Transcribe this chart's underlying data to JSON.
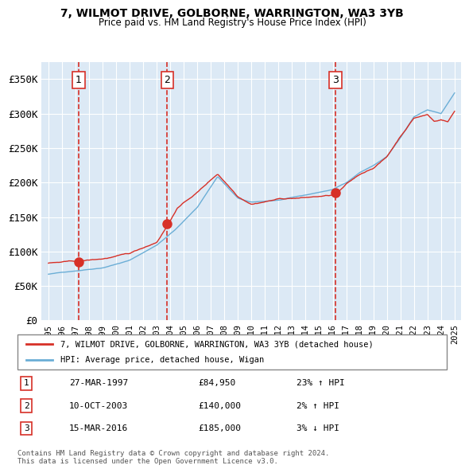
{
  "title": "7, WILMOT DRIVE, GOLBORNE, WARRINGTON, WA3 3YB",
  "subtitle": "Price paid vs. HM Land Registry's House Price Index (HPI)",
  "hpi_color": "#6baed6",
  "price_color": "#d73027",
  "sale_color": "#d73027",
  "bg_color": "#dce9f5",
  "plot_bg": "#dce9f5",
  "grid_color": "#ffffff",
  "dashed_line_color": "#d73027",
  "ylim": [
    0,
    375000
  ],
  "yticks": [
    0,
    50000,
    100000,
    150000,
    200000,
    250000,
    300000,
    350000
  ],
  "ytick_labels": [
    "£0",
    "£50K",
    "£100K",
    "£150K",
    "£200K",
    "£250K",
    "£300K",
    "£350K"
  ],
  "sales": [
    {
      "date_num": 1997.24,
      "price": 84950,
      "label": "1"
    },
    {
      "date_num": 2003.78,
      "price": 140000,
      "label": "2"
    },
    {
      "date_num": 2016.21,
      "price": 185000,
      "label": "3"
    }
  ],
  "sale_labels_info": [
    {
      "num": "1",
      "date": "27-MAR-1997",
      "price": "£84,950",
      "hpi_rel": "23% ↑ HPI"
    },
    {
      "num": "2",
      "date": "10-OCT-2003",
      "price": "£140,000",
      "hpi_rel": "2% ↑ HPI"
    },
    {
      "num": "3",
      "date": "15-MAR-2016",
      "price": "£185,000",
      "hpi_rel": "3% ↓ HPI"
    }
  ],
  "legend_line1": "7, WILMOT DRIVE, GOLBORNE, WARRINGTON, WA3 3YB (detached house)",
  "legend_line2": "HPI: Average price, detached house, Wigan",
  "copyright_text": "Contains HM Land Registry data © Crown copyright and database right 2024.\nThis data is licensed under the Open Government Licence v3.0.",
  "xlim_start": 1994.5,
  "xlim_end": 2025.5
}
